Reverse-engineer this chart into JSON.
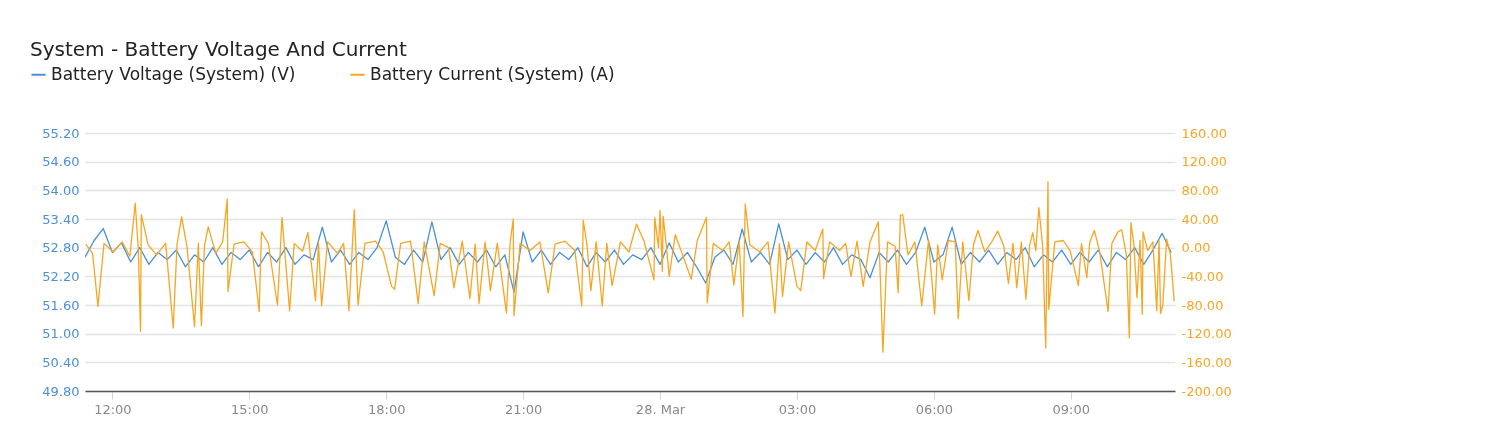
{
  "chart_data": {
    "type": "line",
    "title": "System - Battery Voltage And Current",
    "legend": "top left",
    "grid": "y",
    "xlim": [
      "--03-27T11:24",
      "--03-28T11:17"
    ],
    "xticks": [
      {
        "value": "--03-27T12:00",
        "label": "12:00"
      },
      {
        "value": "--03-27T15:00",
        "label": "15:00"
      },
      {
        "value": "--03-27T18:00",
        "label": "18:00"
      },
      {
        "value": "--03-27T21:00",
        "label": "21:00"
      },
      {
        "value": "--03-28T00:00",
        "label": "28. Mar"
      },
      {
        "value": "--03-28T03:00",
        "label": "03:00"
      },
      {
        "value": "--03-28T06:00",
        "label": "06:00"
      },
      {
        "value": "--03-28T09:00",
        "label": "09:00"
      }
    ],
    "ylim": [
      49.8,
      55.2
    ],
    "yticks": [
      {
        "value": 49.8,
        "label": "49.80"
      },
      {
        "value": 50.4,
        "label": "50.40"
      },
      {
        "value": 51,
        "label": "51.00"
      },
      {
        "value": 51.6,
        "label": "51.60"
      },
      {
        "value": 52.2,
        "label": "52.20"
      },
      {
        "value": 52.8,
        "label": "52.80"
      },
      {
        "value": 53.4,
        "label": "53.40"
      },
      {
        "value": 54,
        "label": "54.00"
      },
      {
        "value": 54.6,
        "label": "54.60"
      },
      {
        "value": 55.2,
        "label": "55.20"
      }
    ],
    "y2lim": [
      -200,
      160
    ],
    "y2ticks": [
      {
        "value": -200,
        "label": "-200.00"
      },
      {
        "value": -160,
        "label": "-160.00"
      },
      {
        "value": -120,
        "label": "-120.00"
      },
      {
        "value": -80,
        "label": "-80.00"
      },
      {
        "value": -40,
        "label": "-40.00"
      },
      {
        "value": 0,
        "label": "0.00"
      },
      {
        "value": 40,
        "label": "40.00"
      },
      {
        "value": 80,
        "label": "80.00"
      },
      {
        "value": 120,
        "label": "120.00"
      },
      {
        "value": 160,
        "label": "160.00"
      }
    ],
    "series": [
      {
        "name": "Battery Voltage (System) (V)",
        "color": "#4a90d9",
        "x": [
          "--03-27T11:24",
          "--03-27T11:36",
          "--03-27T11:48",
          "--03-27T12:00",
          "--03-27T12:12",
          "--03-27T12:24",
          "--03-27T12:36",
          "--03-27T12:48",
          "--03-27T13:00",
          "--03-27T13:12",
          "--03-27T13:24",
          "--03-27T13:36",
          "--03-27T13:48",
          "--03-27T14:00",
          "--03-27T14:12",
          "--03-27T14:24",
          "--03-27T14:36",
          "--03-27T14:48",
          "--03-27T15:00",
          "--03-27T15:12",
          "--03-27T15:24",
          "--03-27T15:36",
          "--03-27T15:48",
          "--03-27T16:00",
          "--03-27T16:12",
          "--03-27T16:24",
          "--03-27T16:36",
          "--03-27T16:48",
          "--03-27T17:00",
          "--03-27T17:12",
          "--03-27T17:24",
          "--03-27T17:36",
          "--03-27T17:48",
          "--03-27T18:00",
          "--03-27T18:12",
          "--03-27T18:24",
          "--03-27T18:36",
          "--03-27T18:48",
          "--03-27T19:00",
          "--03-27T19:12",
          "--03-27T19:24",
          "--03-27T19:36",
          "--03-27T19:48",
          "--03-27T20:00",
          "--03-27T20:12",
          "--03-27T20:24",
          "--03-27T20:36",
          "--03-27T20:48",
          "--03-27T21:00",
          "--03-27T21:12",
          "--03-27T21:24",
          "--03-27T21:36",
          "--03-27T21:48",
          "--03-27T22:00",
          "--03-27T22:12",
          "--03-27T22:24",
          "--03-27T22:36",
          "--03-27T22:48",
          "--03-27T23:00",
          "--03-27T23:12",
          "--03-27T23:24",
          "--03-27T23:36",
          "--03-27T23:48",
          "--03-28T00:00",
          "--03-28T00:12",
          "--03-28T00:24",
          "--03-28T00:36",
          "--03-28T00:48",
          "--03-28T01:00",
          "--03-28T01:12",
          "--03-28T01:24",
          "--03-28T01:36",
          "--03-28T01:48",
          "--03-28T02:00",
          "--03-28T02:12",
          "--03-28T02:24",
          "--03-28T02:36",
          "--03-28T02:48",
          "--03-28T03:00",
          "--03-28T03:12",
          "--03-28T03:24",
          "--03-28T03:36",
          "--03-28T03:48",
          "--03-28T04:00",
          "--03-28T04:12",
          "--03-28T04:24",
          "--03-28T04:36",
          "--03-28T04:48",
          "--03-28T05:00",
          "--03-28T05:12",
          "--03-28T05:24",
          "--03-28T05:36",
          "--03-28T05:48",
          "--03-28T06:00",
          "--03-28T06:12",
          "--03-28T06:24",
          "--03-28T06:36",
          "--03-28T06:48",
          "--03-28T07:00",
          "--03-28T07:12",
          "--03-28T07:24",
          "--03-28T07:36",
          "--03-28T07:48",
          "--03-28T08:00",
          "--03-28T08:12",
          "--03-28T08:24",
          "--03-28T08:36",
          "--03-28T08:48",
          "--03-28T09:00",
          "--03-28T09:12",
          "--03-28T09:24",
          "--03-28T09:36",
          "--03-28T09:48",
          "--03-28T10:00",
          "--03-28T10:12",
          "--03-28T10:24",
          "--03-28T10:36",
          "--03-28T10:48",
          "--03-28T11:00",
          "--03-28T11:12"
        ],
        "values": [
          52.6,
          52.95,
          53.2,
          52.7,
          52.9,
          52.5,
          52.8,
          52.45,
          52.7,
          52.55,
          52.75,
          52.4,
          52.65,
          52.5,
          52.8,
          52.45,
          52.7,
          52.55,
          52.75,
          52.4,
          52.7,
          52.5,
          52.8,
          52.45,
          52.65,
          52.55,
          53.23,
          52.5,
          52.75,
          52.45,
          52.7,
          52.55,
          52.8,
          53.36,
          52.6,
          52.45,
          52.75,
          52.5,
          53.34,
          52.55,
          52.8,
          52.45,
          52.7,
          52.5,
          52.75,
          52.4,
          52.65,
          51.87,
          53.13,
          52.5,
          52.75,
          52.45,
          52.7,
          52.55,
          52.8,
          52.4,
          52.7,
          52.5,
          52.75,
          52.45,
          52.65,
          52.55,
          52.8,
          52.45,
          52.9,
          52.5,
          52.7,
          52.4,
          52.06,
          52.6,
          52.75,
          52.45,
          53.19,
          52.5,
          52.7,
          52.45,
          53.3,
          52.55,
          52.75,
          52.45,
          52.7,
          52.5,
          52.8,
          52.45,
          52.65,
          52.55,
          52.17,
          52.7,
          52.5,
          52.75,
          52.45,
          52.7,
          53.23,
          52.5,
          52.65,
          53.23,
          52.45,
          52.7,
          52.5,
          52.75,
          52.45,
          52.7,
          52.55,
          52.8,
          52.4,
          52.65,
          52.5,
          52.75,
          52.45,
          52.7,
          52.5,
          52.75,
          52.4,
          52.7,
          52.55,
          52.8,
          52.45,
          52.75,
          53.1,
          52.7
        ]
      },
      {
        "name": "Battery Current (System) (A)",
        "color": "#f5a623",
        "axis": "y2",
        "x": [
          "--03-27T11:25",
          "--03-27T11:34",
          "--03-27T11:41",
          "--03-27T11:49",
          "--03-27T12:01",
          "--03-27T12:13",
          "--03-27T12:23",
          "--03-27T12:30",
          "--03-27T12:34",
          "--03-27T12:37",
          "--03-27T12:38",
          "--03-27T12:47",
          "--03-27T12:58",
          "--03-27T13:10",
          "--03-27T13:20",
          "--03-27T13:25",
          "--03-27T13:31",
          "--03-27T13:38",
          "--03-27T13:48",
          "--03-27T13:53",
          "--03-27T13:57",
          "--03-27T14:01",
          "--03-27T14:06",
          "--03-27T14:16",
          "--03-27T14:25",
          "--03-27T14:31",
          "--03-27T14:32",
          "--03-27T14:40",
          "--03-27T14:53",
          "--03-27T15:04",
          "--03-27T15:13",
          "--03-27T15:16",
          "--03-27T15:25",
          "--03-27T15:37",
          "--03-27T15:43",
          "--03-27T15:53",
          "--03-27T15:59",
          "--03-27T16:10",
          "--03-27T16:17",
          "--03-27T16:27",
          "--03-27T16:31",
          "--03-27T16:35",
          "--03-27T16:43",
          "--03-27T16:56",
          "--03-27T17:04",
          "--03-27T17:11",
          "--03-27T17:18",
          "--03-27T17:23",
          "--03-27T17:32",
          "--03-27T17:46",
          "--03-27T17:56",
          "--03-27T18:07",
          "--03-27T18:11",
          "--03-27T18:19",
          "--03-27T18:32",
          "--03-27T18:42",
          "--03-27T18:50",
          "--03-27T19:03",
          "--03-27T19:11",
          "--03-27T19:22",
          "--03-27T19:29",
          "--03-27T19:40",
          "--03-27T19:50",
          "--03-27T19:57",
          "--03-27T20:02",
          "--03-27T20:10",
          "--03-27T20:17",
          "--03-27T20:26",
          "--03-27T20:38",
          "--03-27T20:43",
          "--03-27T20:47",
          "--03-27T20:48",
          "--03-27T20:56",
          "--03-27T21:09",
          "--03-27T21:22",
          "--03-27T21:33",
          "--03-27T21:42",
          "--03-27T21:55",
          "--03-27T22:08",
          "--03-27T22:17",
          "--03-27T22:19",
          "--03-27T22:24",
          "--03-27T22:29",
          "--03-27T22:36",
          "--03-27T22:44",
          "--03-27T22:50",
          "--03-27T22:57",
          "--03-27T23:08",
          "--03-27T23:19",
          "--03-27T23:29",
          "--03-27T23:39",
          "--03-27T23:52",
          "--03-27T23:53",
          "--03-27T23:58",
          "--03-28T00:00",
          "--03-28T00:03",
          "--03-28T00:04",
          "--03-28T00:08",
          "--03-28T00:12",
          "--03-28T00:20",
          "--03-28T00:29",
          "--03-28T00:41",
          "--03-28T00:49",
          "--03-28T01:01",
          "--03-28T01:02",
          "--03-28T01:10",
          "--03-28T01:22",
          "--03-28T01:31",
          "--03-28T01:37",
          "--03-28T01:44",
          "--03-28T01:49",
          "--03-28T01:52",
          "--03-28T01:58",
          "--03-28T02:11",
          "--03-28T02:22",
          "--03-28T02:31",
          "--03-28T02:37",
          "--03-28T02:41",
          "--03-28T02:49",
          "--03-28T03:00",
          "--03-28T03:05",
          "--03-28T03:13",
          "--03-28T03:24",
          "--03-28T03:34",
          "--03-28T03:35",
          "--03-28T03:43",
          "--03-28T03:56",
          "--03-28T04:04",
          "--03-28T04:11",
          "--03-28T04:19",
          "--03-28T04:27",
          "--03-28T04:36",
          "--03-28T04:47",
          "--03-28T04:53",
          "--03-28T04:59",
          "--03-28T05:09",
          "--03-28T05:13",
          "--03-28T05:16",
          "--03-28T05:19",
          "--03-28T05:26",
          "--03-28T05:35",
          "--03-28T05:44",
          "--03-28T05:53",
          "--03-28T06:01",
          "--03-28T06:05",
          "--03-28T06:11",
          "--03-28T06:19",
          "--03-28T06:28",
          "--03-28T06:32",
          "--03-28T06:38",
          "--03-28T06:46",
          "--03-28T06:52",
          "--03-28T06:58",
          "--03-28T07:07",
          "--03-28T07:16",
          "--03-28T07:24",
          "--03-28T07:32",
          "--03-28T07:38",
          "--03-28T07:44",
          "--03-28T07:49",
          "--03-28T07:55",
          "--03-28T08:01",
          "--03-28T08:06",
          "--03-28T08:10",
          "--03-28T08:14",
          "--03-28T08:18",
          "--03-28T08:23",
          "--03-28T08:27",
          "--03-28T08:30",
          "--03-28T08:31",
          "--03-28T08:39",
          "--03-28T08:50",
          "--03-28T08:59",
          "--03-28T09:10",
          "--03-28T09:14",
          "--03-28T09:21",
          "--03-28T09:25",
          "--03-28T09:31",
          "--03-28T09:38",
          "--03-28T09:49",
          "--03-28T09:54",
          "--03-28T10:02",
          "--03-28T10:07",
          "--03-28T10:13",
          "--03-28T10:17",
          "--03-28T10:19",
          "--03-28T10:23",
          "--03-28T10:27",
          "--03-28T10:31",
          "--03-28T10:34",
          "--03-28T10:35",
          "--03-28T10:41",
          "--03-28T10:48",
          "--03-28T10:53",
          "--03-28T10:56",
          "--03-28T10:58",
          "--03-28T11:01",
          "--03-28T11:06",
          "--03-28T11:11",
          "--03-28T11:16"
        ],
        "values": [
          5,
          -8,
          -82,
          6,
          -6,
          8,
          -12,
          62,
          0,
          -117,
          46,
          4,
          -10,
          6,
          -112,
          5,
          43,
          2,
          -110,
          6,
          -109,
          2,
          29,
          -8,
          8,
          68,
          -61,
          5,
          8,
          -6,
          -89,
          22,
          6,
          -80,
          42,
          -88,
          6,
          -5,
          21,
          -74,
          6,
          -81,
          8,
          -8,
          6,
          -88,
          53,
          -80,
          6,
          9,
          -6,
          -54,
          -58,
          6,
          9,
          -78,
          8,
          -67,
          6,
          0,
          -56,
          9,
          -71,
          5,
          -78,
          8,
          -60,
          6,
          -91,
          8,
          40,
          -95,
          6,
          -4,
          8,
          -63,
          5,
          9,
          -4,
          -81,
          38,
          4,
          -60,
          8,
          -81,
          6,
          -53,
          8,
          -6,
          33,
          9,
          -45,
          42,
          0,
          52,
          -33,
          44,
          6,
          -40,
          18,
          -8,
          -44,
          10,
          42,
          -77,
          6,
          -4,
          8,
          -52,
          9,
          -96,
          61,
          4,
          -6,
          8,
          -91,
          6,
          -68,
          8,
          -54,
          -60,
          8,
          -4,
          26,
          -43,
          8,
          -4,
          6,
          -40,
          9,
          -54,
          8,
          36,
          -146,
          8,
          2,
          -63,
          45,
          46,
          -10,
          8,
          -81,
          10,
          -93,
          4,
          -45,
          10,
          8,
          -99,
          8,
          -74,
          4,
          24,
          -6,
          8,
          23,
          2,
          -50,
          6,
          -56,
          8,
          -72,
          4,
          21,
          -4,
          56,
          2,
          -140,
          92,
          -86,
          8,
          10,
          -4,
          -53,
          6,
          -42,
          8,
          24,
          -6,
          -89,
          6,
          22,
          25,
          -10,
          -126,
          35,
          4,
          -70,
          10,
          -93,
          22,
          -4,
          8,
          -88,
          10,
          -92,
          -80,
          12,
          -10,
          -75
        ]
      }
    ]
  }
}
